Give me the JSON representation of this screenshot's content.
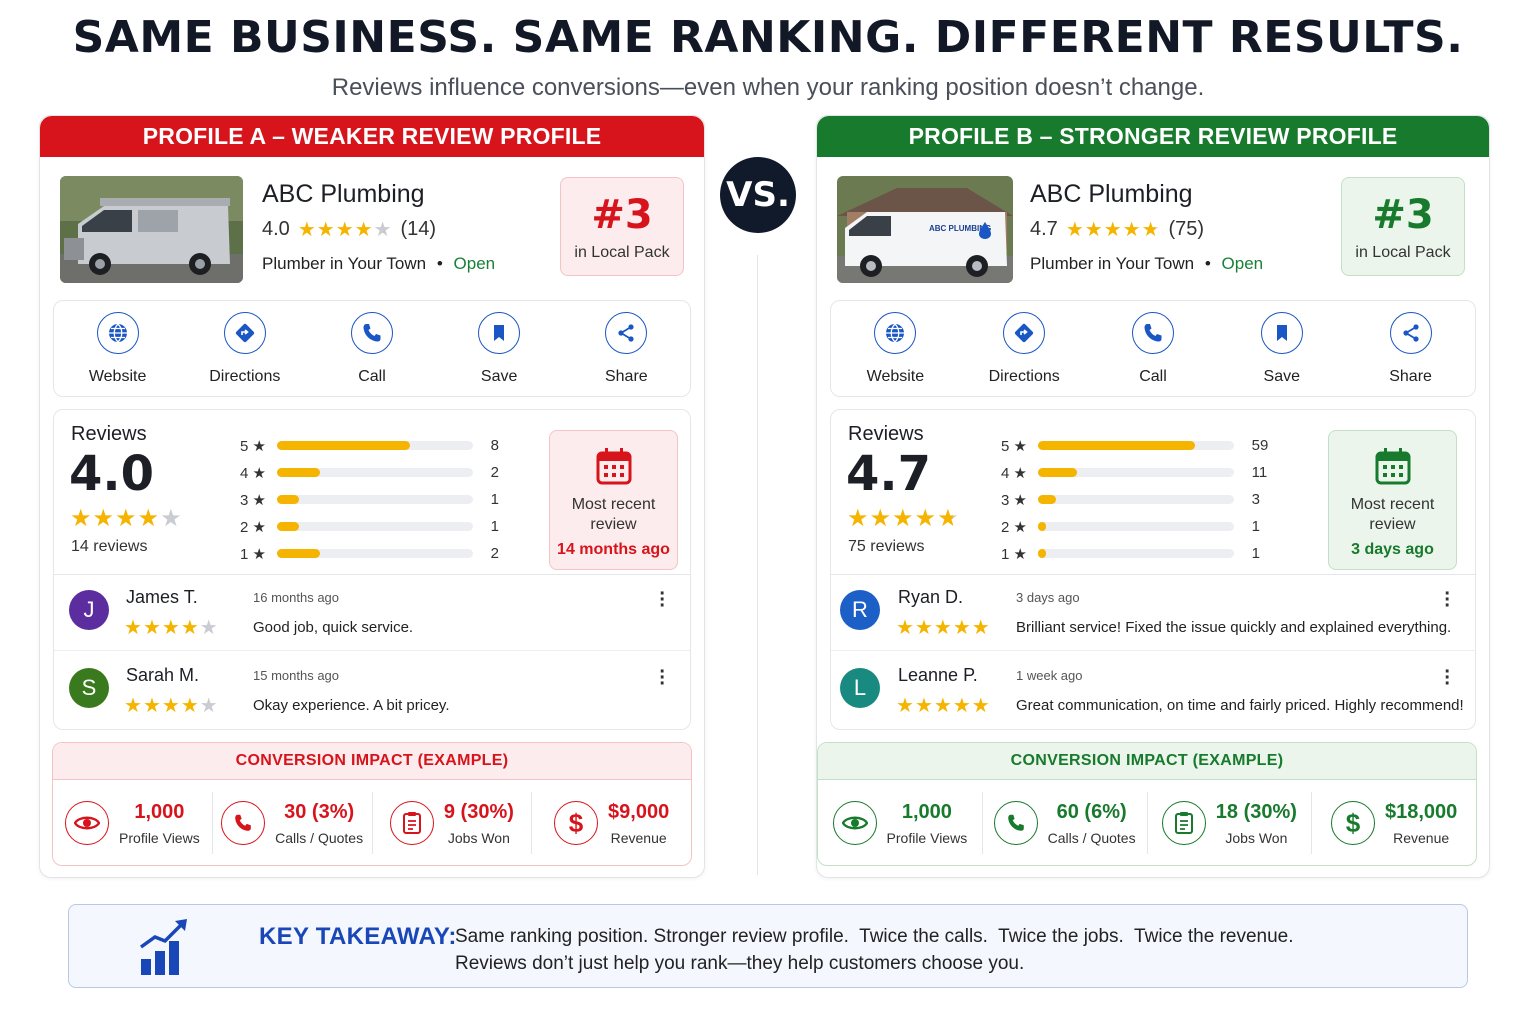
{
  "headline": "SAME BUSINESS. SAME RANKING. DIFFERENT RESULTS.",
  "subheadline": "Reviews influence conversions—even when your ranking position doesn’t change.",
  "vs_label": "VS.",
  "colors": {
    "red": "#d7141c",
    "green": "#177a2c",
    "blue": "#1a47b8",
    "star": "#f5b400"
  },
  "profile_a": {
    "header": "PROFILE A – WEAKER REVIEW PROFILE",
    "name": "ABC Plumbing",
    "rating": "4.0",
    "rating_stars": 4,
    "review_count": "(14)",
    "category": "Plumber in Your Town",
    "separator": "•",
    "status": "Open",
    "rank": "#3",
    "rank_label": "in Local Pack",
    "actions": [
      {
        "label": "Website",
        "icon": "globe-icon"
      },
      {
        "label": "Directions",
        "icon": "directions-icon"
      },
      {
        "label": "Call",
        "icon": "phone-icon"
      },
      {
        "label": "Save",
        "icon": "bookmark-icon"
      },
      {
        "label": "Share",
        "icon": "share-icon"
      }
    ],
    "reviews_title": "Reviews",
    "score": "4.0",
    "score_stars": 4,
    "reviews_total": "14 reviews",
    "distribution": [
      {
        "star": "5 ★",
        "count": 8,
        "fraction": 0.68
      },
      {
        "star": "4 ★",
        "count": 2,
        "fraction": 0.22
      },
      {
        "star": "3 ★",
        "count": 1,
        "fraction": 0.11
      },
      {
        "star": "2 ★",
        "count": 1,
        "fraction": 0.11
      },
      {
        "star": "1 ★",
        "count": 2,
        "fraction": 0.22
      }
    ],
    "recent_label": "Most recent review",
    "recent_value": "14 months ago",
    "comments": [
      {
        "initial": "J",
        "name": "James T.",
        "stars": 4,
        "time": "16 months ago",
        "text": "Good job, quick service.",
        "avatar_color": "#5b2d9e"
      },
      {
        "initial": "S",
        "name": "Sarah M.",
        "stars": 4,
        "time": "15 months ago",
        "text": "Okay experience. A bit pricey.",
        "avatar_color": "#3a7a1f"
      }
    ],
    "conversion_title": "CONVERSION IMPACT (EXAMPLE)",
    "metrics": [
      {
        "value": "1,000",
        "label": "Profile Views",
        "icon": "eye-icon"
      },
      {
        "value": "30 (3%)",
        "label": "Calls / Quotes",
        "icon": "phone-icon"
      },
      {
        "value": "9 (30%)",
        "label": "Jobs Won",
        "icon": "clipboard-icon"
      },
      {
        "value": "$9,000",
        "label": "Revenue",
        "icon": "dollar-icon"
      }
    ]
  },
  "profile_b": {
    "header": "PROFILE B – STRONGER REVIEW PROFILE",
    "name": "ABC Plumbing",
    "rating": "4.7",
    "rating_stars": 4.7,
    "review_count": "(75)",
    "category": "Plumber in Your Town",
    "separator": "•",
    "status": "Open",
    "rank": "#3",
    "rank_label": "in Local Pack",
    "van_text": "ABC PLUMBING",
    "actions": [
      {
        "label": "Website",
        "icon": "globe-icon"
      },
      {
        "label": "Directions",
        "icon": "directions-icon"
      },
      {
        "label": "Call",
        "icon": "phone-icon"
      },
      {
        "label": "Save",
        "icon": "bookmark-icon"
      },
      {
        "label": "Share",
        "icon": "share-icon"
      }
    ],
    "reviews_title": "Reviews",
    "score": "4.7",
    "score_stars": 4.7,
    "reviews_total": "75 reviews",
    "distribution": [
      {
        "star": "5 ★",
        "count": 59,
        "fraction": 0.8
      },
      {
        "star": "4 ★",
        "count": 11,
        "fraction": 0.2
      },
      {
        "star": "3 ★",
        "count": 3,
        "fraction": 0.09
      },
      {
        "star": "2 ★",
        "count": 1,
        "fraction": 0.04
      },
      {
        "star": "1 ★",
        "count": 1,
        "fraction": 0.04
      }
    ],
    "recent_label": "Most recent review",
    "recent_value": "3 days ago",
    "comments": [
      {
        "initial": "R",
        "name": "Ryan D.",
        "stars": 5,
        "time": "3 days ago",
        "text": "Brilliant service! Fixed the issue quickly and explained everything.",
        "avatar_color": "#1c5fc7"
      },
      {
        "initial": "L",
        "name": "Leanne P.",
        "stars": 5,
        "time": "1 week ago",
        "text": "Great communication, on time and fairly priced. Highly recommend!",
        "avatar_color": "#188a7f"
      }
    ],
    "conversion_title": "CONVERSION IMPACT (EXAMPLE)",
    "metrics": [
      {
        "value": "1,000",
        "label": "Profile Views",
        "icon": "eye-icon"
      },
      {
        "value": "60 (6%)",
        "label": "Calls / Quotes",
        "icon": "phone-icon"
      },
      {
        "value": "18 (30%)",
        "label": "Jobs Won",
        "icon": "clipboard-icon"
      },
      {
        "value": "$18,000",
        "label": "Revenue",
        "icon": "dollar-icon"
      }
    ]
  },
  "takeaway": {
    "label": "KEY TAKEAWAY:",
    "line1": "Same ranking position. Stronger review profile.  Twice the calls.  Twice the jobs.  Twice the revenue.",
    "line2": "Reviews don’t just help you rank—they help customers choose you."
  }
}
